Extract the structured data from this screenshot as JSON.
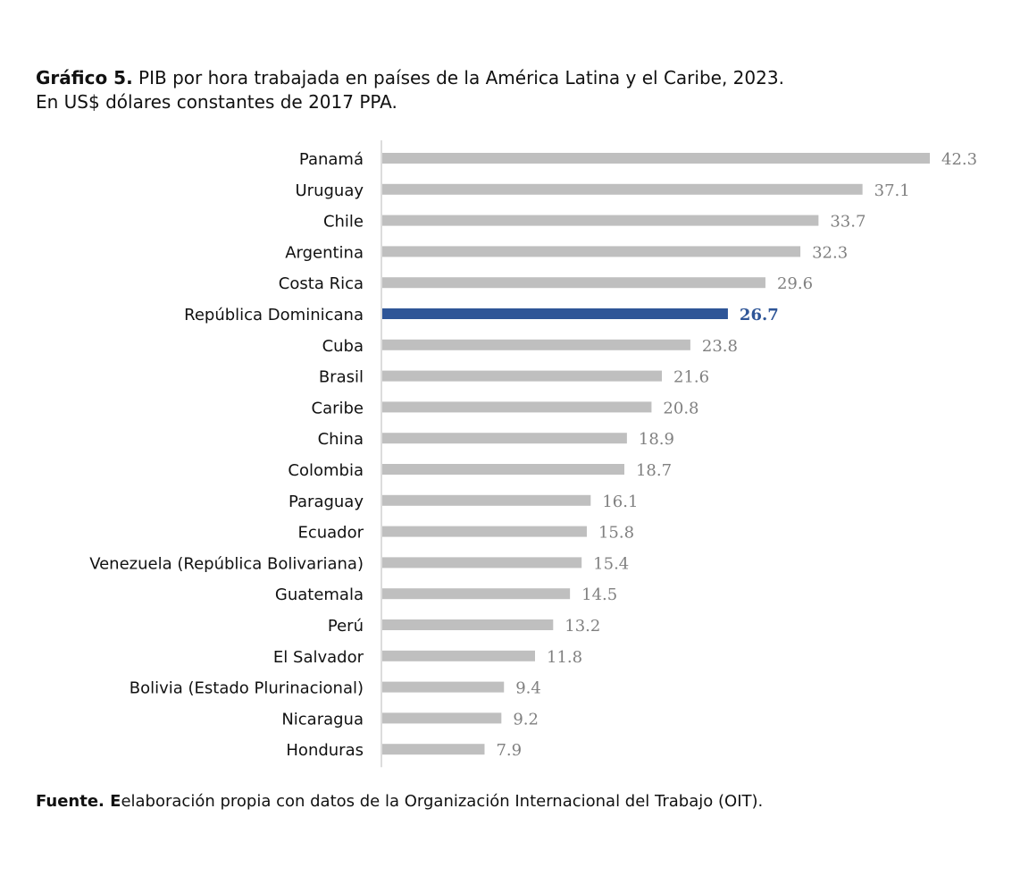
{
  "title": {
    "prefix": "Gráfico 5.",
    "text": " PIB por hora trabajada en países de la América Latina y el Caribe, 2023.",
    "subtitle": "En US$ dólares constantes de 2017 PPA."
  },
  "source": {
    "prefix": "Fuente. E",
    "text": "elaboración propia con datos de la Organización Internacional del Trabajo (OIT)."
  },
  "chart_data": {
    "type": "bar",
    "orientation": "horizontal",
    "categories": [
      "Panamá",
      "Uruguay",
      "Chile",
      "Argentina",
      "Costa Rica",
      "República Dominicana",
      "Cuba",
      "Brasil",
      "Caribe",
      "China",
      "Colombia",
      "Paraguay",
      "Ecuador",
      "Venezuela (República Bolivariana)",
      "Guatemala",
      "Perú",
      "El Salvador",
      "Bolivia (Estado Plurinacional)",
      "Nicaragua",
      "Honduras"
    ],
    "values": [
      42.3,
      37.1,
      33.7,
      32.3,
      29.6,
      26.7,
      23.8,
      21.6,
      20.8,
      18.9,
      18.7,
      16.1,
      15.8,
      15.4,
      14.5,
      13.2,
      11.8,
      9.4,
      9.2,
      7.9
    ],
    "value_labels": [
      "42.3",
      "37.1",
      "33.7",
      "32.3",
      "29.6",
      "26.7",
      "23.8",
      "21.6",
      "20.8",
      "18.9",
      "18.7",
      "16.1",
      "15.8",
      "15.4",
      "14.5",
      "13.2",
      "11.8",
      "9.4",
      "9.2",
      "7.9"
    ],
    "highlight_category": "República Dominicana",
    "xlim": [
      0,
      42.3
    ],
    "grid": false,
    "legend": "none",
    "colors": {
      "bar": "#bfbfbf",
      "highlight": "#2e5597",
      "value_label": "#808080",
      "axis": "#d0d0d0"
    }
  }
}
